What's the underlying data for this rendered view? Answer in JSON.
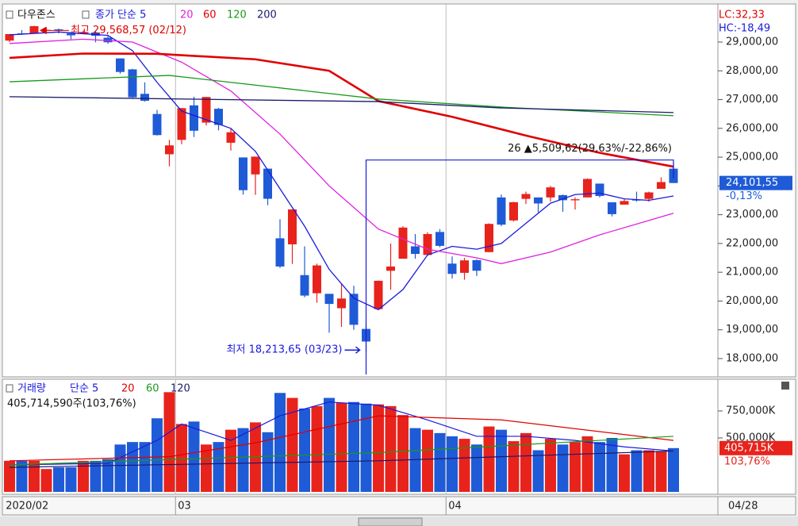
{
  "chart_data": [
    {
      "type": "candlestick",
      "name": "다우존스",
      "categories": [
        "2020/02",
        null,
        null,
        null,
        null,
        null,
        null,
        null,
        null,
        null,
        null,
        null,
        null,
        null,
        "03",
        null,
        null,
        null,
        null,
        null,
        null,
        null,
        null,
        null,
        null,
        null,
        null,
        null,
        null,
        null,
        null,
        null,
        null,
        null,
        null,
        null,
        "04",
        null,
        null,
        null,
        null,
        null,
        null,
        null,
        null,
        null,
        null,
        null,
        null,
        null,
        null,
        null,
        null,
        null,
        null
      ],
      "end_label": "04/28",
      "open": [
        29050,
        29300,
        29300,
        29400,
        29440,
        29300,
        29290,
        29330,
        29150,
        28430,
        28050,
        27200,
        26500,
        25100,
        25600,
        26800,
        26200,
        26680,
        25500,
        24990,
        24400,
        24600,
        22180,
        21970,
        20900,
        20270,
        20250,
        19750,
        20250,
        19030,
        19720,
        21050,
        21470,
        21900,
        21600,
        22400,
        21300,
        20980,
        21420,
        21700,
        23600,
        22800,
        23550,
        23600,
        23600,
        23680,
        23500,
        23600,
        24080,
        23430,
        23350,
        23520,
        23550,
        23900,
        24600
      ],
      "high": [
        29280,
        29415,
        29568.57,
        29500,
        29470,
        29330,
        29400,
        29370,
        29200,
        28430,
        28070,
        27600,
        26640,
        25600,
        26710,
        27100,
        27090,
        26710,
        26000,
        24990,
        25020,
        24600,
        22840,
        23190,
        21900,
        21300,
        20250,
        20600,
        20530,
        19220,
        20710,
        22000,
        22600,
        22330,
        22390,
        22500,
        21550,
        21500,
        21450,
        22700,
        23700,
        23450,
        23800,
        23600,
        24000,
        23700,
        23600,
        24260,
        24080,
        23430,
        23560,
        23800,
        23800,
        24300,
        24790
      ],
      "low": [
        29000,
        29250,
        29290,
        29350,
        29300,
        29100,
        29270,
        28990,
        28940,
        27900,
        27050,
        26930,
        25750,
        24680,
        25450,
        25700,
        26100,
        25930,
        25230,
        23700,
        23690,
        23330,
        21150,
        21290,
        20130,
        19940,
        18900,
        19100,
        19000,
        18213.65,
        19720,
        20390,
        21470,
        21470,
        21580,
        21870,
        20780,
        20740,
        20870,
        21690,
        22600,
        22760,
        23370,
        23080,
        23450,
        23100,
        23180,
        23600,
        23600,
        22940,
        23350,
        23450,
        23450,
        23900,
        24100
      ],
      "close": [
        29276,
        29276,
        29551,
        29423,
        29398,
        29232,
        29348,
        29219,
        28992,
        27960,
        27081,
        26957,
        25766,
        25409,
        26703,
        25917,
        27091,
        26121,
        25864,
        23851,
        25018,
        23553,
        21200,
        23185,
        20189,
        21237,
        19899,
        20087,
        19174,
        18592,
        20704,
        21200,
        22552,
        21637,
        22327,
        21917,
        20943,
        21413,
        21052,
        22680,
        22654,
        23434,
        23719,
        23390,
        23950,
        23504,
        23538,
        24242,
        23650,
        23019,
        23475,
        23516,
        23775,
        24134,
        24101.55
      ],
      "up_color": "#e8231c",
      "down_color": "#1f5bd6",
      "ylim": [
        17365,
        30323
      ],
      "yticks": [
        {
          "value": 29000,
          "label": "29,000,00"
        },
        {
          "value": 28000,
          "label": "28,000,00"
        },
        {
          "value": 27000,
          "label": "27,000,00"
        },
        {
          "value": 26000,
          "label": "26,000,00"
        },
        {
          "value": 25000,
          "label": "25,000,00"
        },
        {
          "value": 24000,
          "label": "24,000,00"
        },
        {
          "value": 23000,
          "label": "23,000,00"
        },
        {
          "value": 22000,
          "label": "22,000,00"
        },
        {
          "value": 21000,
          "label": "21,000,00"
        },
        {
          "value": 20000,
          "label": "20,000,00"
        },
        {
          "value": 19000,
          "label": "19,000,00"
        },
        {
          "value": 18000,
          "label": "18,000,00"
        }
      ],
      "indicators": [
        {
          "name": "종가 단순 5",
          "color": "#1a1adc",
          "x": [
            0,
            4,
            8,
            10,
            12,
            14,
            16,
            18,
            20,
            22,
            24,
            26,
            28,
            30,
            32,
            34,
            36,
            38,
            40,
            42,
            44,
            46,
            48,
            50,
            52,
            54
          ],
          "values": [
            29250,
            29350,
            29230,
            28700,
            27600,
            26600,
            26300,
            26000,
            25200,
            23900,
            22600,
            21100,
            20100,
            19700,
            20400,
            21600,
            21900,
            21800,
            22000,
            22700,
            23400,
            23700,
            23750,
            23550,
            23500,
            23650
          ]
        },
        {
          "name": "20",
          "color": "#e020e0",
          "x": [
            0,
            6,
            10,
            14,
            18,
            22,
            26,
            30,
            34,
            38,
            40,
            44,
            48,
            52,
            54
          ],
          "values": [
            28950,
            29100,
            29000,
            28300,
            27300,
            25800,
            24000,
            22500,
            21800,
            21500,
            21300,
            21700,
            22300,
            22800,
            23050
          ]
        },
        {
          "name": "60",
          "color": "#e00000",
          "x": [
            0,
            6,
            12,
            20,
            26,
            30,
            36,
            42,
            48,
            54
          ],
          "values": [
            28450,
            28600,
            28590,
            28400,
            28000,
            26950,
            26400,
            25750,
            25150,
            24670
          ]
        },
        {
          "name": "120",
          "color": "#1a9a1a",
          "x": [
            0,
            13,
            30,
            40,
            54
          ],
          "values": [
            27620,
            27840,
            27020,
            26740,
            26440
          ]
        },
        {
          "name": "200",
          "color": "#1a1a6e",
          "x": [
            0,
            30,
            40,
            54
          ],
          "values": [
            27100,
            26930,
            26710,
            26550
          ]
        }
      ],
      "last_label": "24,101,55",
      "change_label": "-0,13%",
      "stats": [
        {
          "text": "LC:32,33",
          "color": "#e00000"
        },
        {
          "text": "HC:-18,49",
          "color": "#1a1adc"
        }
      ],
      "annotations": {
        "high": "최고 29,568,57 (02/12)",
        "low": "최저 18,213,65 (03/23)",
        "range": "26 ▲5,509,62(29,63%/-22,86%)"
      }
    },
    {
      "type": "bar",
      "title": "거래량",
      "values": [
        288000,
        288000,
        288000,
        212000,
        227000,
        227000,
        288000,
        288000,
        303000,
        439000,
        462000,
        462000,
        682000,
        924000,
        629000,
        652000,
        439000,
        462000,
        576000,
        591000,
        644000,
        553000,
        917000,
        871000,
        773000,
        795000,
        871000,
        826000,
        833000,
        818000,
        811000,
        795000,
        712000,
        591000,
        576000,
        545000,
        515000,
        492000,
        439000,
        606000,
        576000,
        470000,
        545000,
        386000,
        492000,
        439000,
        462000,
        515000,
        462000,
        500000,
        348000,
        386000,
        386000,
        379000,
        405715
      ],
      "ylim": [
        0,
        1044000
      ],
      "yticks": [
        {
          "value": 750000,
          "label": "750,000K"
        },
        {
          "value": 500000,
          "label": "500,000K"
        }
      ],
      "indicators": [
        {
          "name": "단순 5",
          "color": "#1a1adc",
          "x": [
            0,
            8,
            12,
            14,
            18,
            22,
            26,
            30,
            34,
            38,
            42,
            46,
            50,
            54
          ],
          "values": [
            250000,
            265000,
            477000,
            629000,
            477000,
            705000,
            833000,
            803000,
            667000,
            515000,
            515000,
            477000,
            417000,
            379000
          ]
        },
        {
          "name": "20",
          "color": "#e00000",
          "x": [
            0,
            13,
            20,
            30,
            40,
            54
          ],
          "values": [
            288000,
            326000,
            455000,
            705000,
            667000,
            477000
          ]
        },
        {
          "name": "60",
          "color": "#1a9a1a",
          "x": [
            0,
            20,
            30,
            54
          ],
          "values": [
            250000,
            326000,
            364000,
            515000
          ]
        },
        {
          "name": "120",
          "color": "#1a1a6e",
          "x": [
            0,
            30,
            54
          ],
          "values": [
            227000,
            288000,
            379000
          ]
        }
      ],
      "summary": "405,714,590주(103,76%)",
      "last_label": "405,715K",
      "change_label": "103,76%"
    }
  ]
}
